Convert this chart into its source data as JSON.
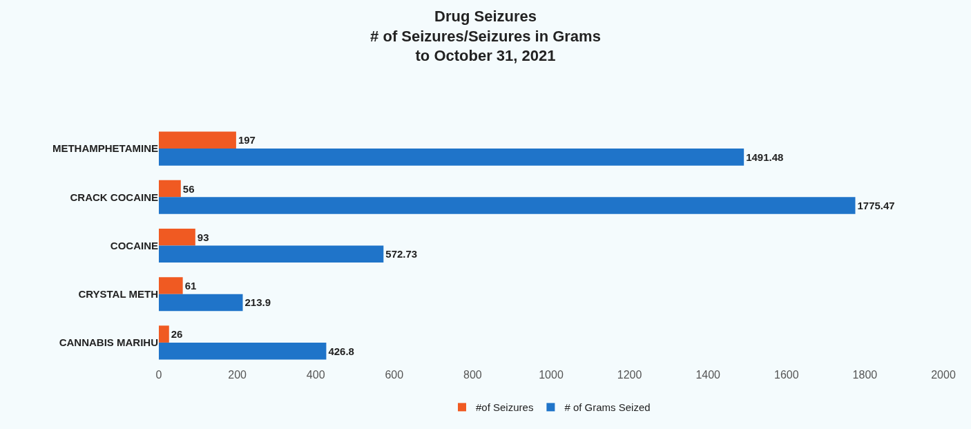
{
  "chart_data": {
    "type": "bar",
    "orientation": "horizontal",
    "title": "Drug Seizures\n# of Seizures/Seizures in Grams\nto October 31, 2021",
    "categories": [
      "METHAMPHETAMINE",
      "CRACK COCAINE",
      "COCAINE",
      "CRYSTAL METH",
      "CANNABIS MARIHU"
    ],
    "series": [
      {
        "name": "#of Seizures",
        "color": "#f05a22",
        "values": [
          197,
          56,
          93,
          61,
          26
        ]
      },
      {
        "name": "# of Grams Seized",
        "color": "#1f74c9",
        "values": [
          1491.48,
          1775.47,
          572.73,
          213.9,
          426.8
        ]
      }
    ],
    "xlim": [
      0,
      2000
    ],
    "xticks": [
      0,
      200,
      400,
      600,
      800,
      1000,
      1200,
      1400,
      1600,
      1800,
      2000
    ],
    "grid": false,
    "legend": "bottom",
    "data_labels": true
  }
}
